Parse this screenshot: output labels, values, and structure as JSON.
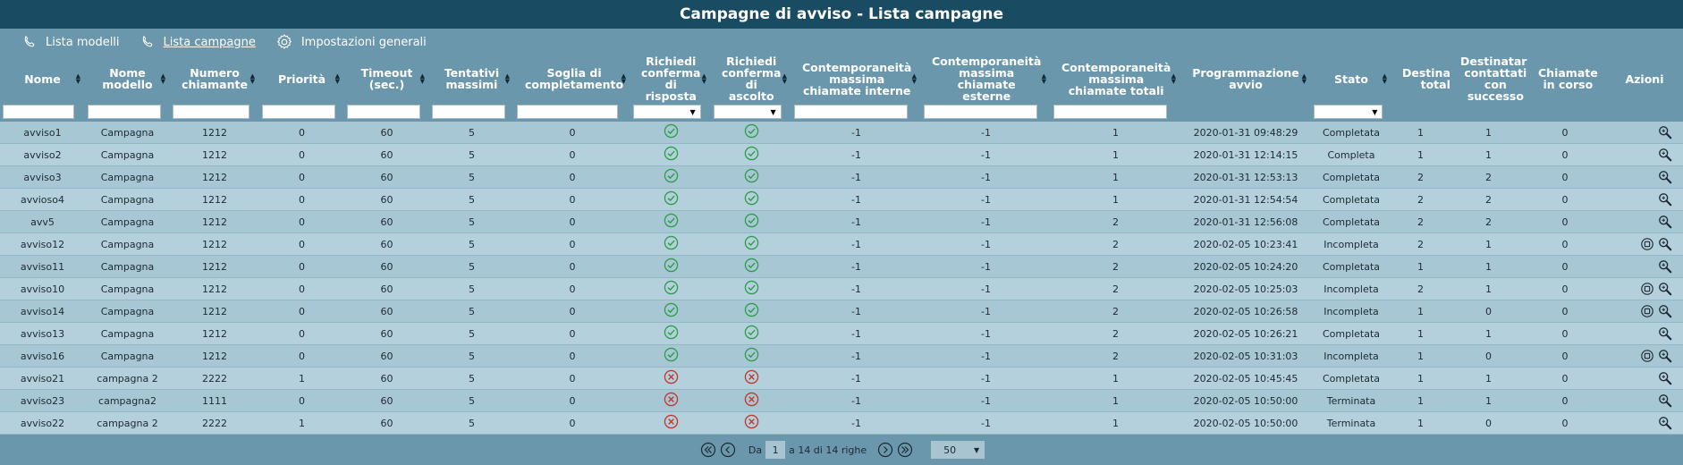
{
  "title": "Campagne di avviso - Lista campagne",
  "nav": [
    {
      "label": "Lista modelli",
      "icon": "phone-icon",
      "active": false
    },
    {
      "label": "Lista campagne",
      "icon": "phone-icon",
      "active": true
    },
    {
      "label": "Impostazioni generali",
      "icon": "gear-icon",
      "active": false
    }
  ],
  "columns": [
    {
      "label": "Nome",
      "sort": true,
      "filter": "input"
    },
    {
      "label": "Nome modello",
      "sort": true,
      "filter": "input"
    },
    {
      "label": "Numero chiamante",
      "sort": true,
      "filter": "input"
    },
    {
      "label": "Priorità",
      "sort": true,
      "filter": "input"
    },
    {
      "label": "Timeout (sec.)",
      "sort": true,
      "filter": "input"
    },
    {
      "label": "Tentativi massimi",
      "sort": true,
      "filter": "input"
    },
    {
      "label": "Soglia di completamento",
      "sort": true,
      "filter": "input"
    },
    {
      "label": "Richiedi conferma di risposta",
      "sort": true,
      "filter": "select"
    },
    {
      "label": "Richiedi conferma di ascolto",
      "sort": true,
      "filter": "select"
    },
    {
      "label": "Contemporaneità massima chiamate interne",
      "sort": true,
      "filter": "input"
    },
    {
      "label": "Contemporaneità massima chiamate esterne",
      "sort": true,
      "filter": "input"
    },
    {
      "label": "Contemporaneità massima chiamate totali",
      "sort": true,
      "filter": "input"
    },
    {
      "label": "Programmazione avvio",
      "sort": true,
      "filter": "none"
    },
    {
      "label": "Stato",
      "sort": true,
      "filter": "select"
    },
    {
      "label": "Destinatari totali",
      "sort": false,
      "filter": "none"
    },
    {
      "label": "Destinatari contattati con successo",
      "sort": false,
      "filter": "none"
    },
    {
      "label": "Chiamate in corso",
      "sort": false,
      "filter": "none"
    },
    {
      "label": "Azioni",
      "sort": false,
      "filter": "none"
    }
  ],
  "rows": [
    [
      "avviso1",
      "Campagna",
      "1212",
      "0",
      "60",
      "5",
      "0",
      "ok",
      "ok",
      "-1",
      "-1",
      "1",
      "2020-01-31 09:48:29",
      "Completata",
      "1",
      "1",
      "0",
      "zoom"
    ],
    [
      "avviso2",
      "Campagna",
      "1212",
      "0",
      "60",
      "5",
      "0",
      "ok",
      "ok",
      "-1",
      "-1",
      "1",
      "2020-01-31 12:14:15",
      "Completa",
      "1",
      "1",
      "0",
      "zoom"
    ],
    [
      "avviso3",
      "Campagna",
      "1212",
      "0",
      "60",
      "5",
      "0",
      "ok",
      "ok",
      "-1",
      "-1",
      "1",
      "2020-01-31 12:53:13",
      "Completata",
      "2",
      "2",
      "0",
      "zoom"
    ],
    [
      "avvioso4",
      "Campagna",
      "1212",
      "0",
      "60",
      "5",
      "0",
      "ok",
      "ok",
      "-1",
      "-1",
      "1",
      "2020-01-31 12:54:54",
      "Completata",
      "2",
      "2",
      "0",
      "zoom"
    ],
    [
      "avv5",
      "Campagna",
      "1212",
      "0",
      "60",
      "5",
      "0",
      "ok",
      "ok",
      "-1",
      "-1",
      "2",
      "2020-01-31 12:56:08",
      "Completata",
      "2",
      "2",
      "0",
      "zoom"
    ],
    [
      "avviso12",
      "Campagna",
      "1212",
      "0",
      "60",
      "5",
      "0",
      "ok",
      "ok",
      "-1",
      "-1",
      "2",
      "2020-02-05 10:23:41",
      "Incompleta",
      "2",
      "1",
      "0",
      "stop+zoom"
    ],
    [
      "avviso11",
      "Campagna",
      "1212",
      "0",
      "60",
      "5",
      "0",
      "ok",
      "ok",
      "-1",
      "-1",
      "2",
      "2020-02-05 10:24:20",
      "Completata",
      "1",
      "1",
      "0",
      "zoom"
    ],
    [
      "avviso10",
      "Campagna",
      "1212",
      "0",
      "60",
      "5",
      "0",
      "ok",
      "ok",
      "-1",
      "-1",
      "2",
      "2020-02-05 10:25:03",
      "Incompleta",
      "2",
      "1",
      "0",
      "stop+zoom"
    ],
    [
      "avviso14",
      "Campagna",
      "1212",
      "0",
      "60",
      "5",
      "0",
      "ok",
      "ok",
      "-1",
      "-1",
      "2",
      "2020-02-05 10:26:58",
      "Incompleta",
      "1",
      "0",
      "0",
      "stop+zoom"
    ],
    [
      "avviso13",
      "Campagna",
      "1212",
      "0",
      "60",
      "5",
      "0",
      "ok",
      "ok",
      "-1",
      "-1",
      "2",
      "2020-02-05 10:26:21",
      "Completata",
      "1",
      "1",
      "0",
      "zoom"
    ],
    [
      "avviso16",
      "Campagna",
      "1212",
      "0",
      "60",
      "5",
      "0",
      "ok",
      "ok",
      "-1",
      "-1",
      "2",
      "2020-02-05 10:31:03",
      "Incompleta",
      "1",
      "0",
      "0",
      "stop+zoom"
    ],
    [
      "avviso21",
      "campagna 2",
      "2222",
      "1",
      "60",
      "5",
      "0",
      "ko",
      "ko",
      "-1",
      "-1",
      "1",
      "2020-02-05 10:45:45",
      "Completata",
      "1",
      "1",
      "0",
      "zoom"
    ],
    [
      "avviso23",
      "campagna2",
      "1111",
      "0",
      "60",
      "5",
      "0",
      "ko",
      "ko",
      "-1",
      "-1",
      "1",
      "2020-02-05 10:50:00",
      "Terminata",
      "1",
      "1",
      "0",
      "zoom"
    ],
    [
      "avviso22",
      "campagna 2",
      "2222",
      "1",
      "60",
      "5",
      "0",
      "ko",
      "ko",
      "-1",
      "-1",
      "1",
      "2020-02-05 10:50:00",
      "Terminata",
      "1",
      "0",
      "0",
      "zoom"
    ]
  ],
  "pagination": {
    "from_label": "Da",
    "page": "1",
    "range_label": "a 14 di 14 righe",
    "page_size": "50"
  },
  "colors": {
    "header": "#194c63",
    "background": "#6a97ab",
    "ok": "#2e9e4a",
    "ko": "#c0392b"
  }
}
